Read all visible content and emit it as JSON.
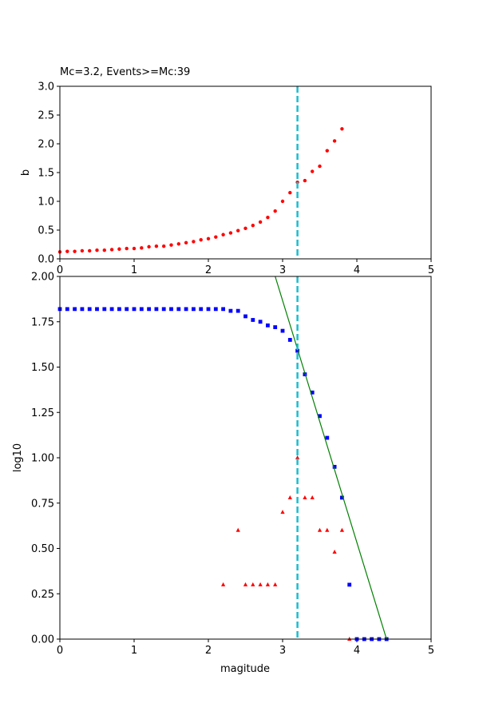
{
  "colors": {
    "b_points": "#ff0000",
    "cumulative": "#0000ff",
    "noncumulative": "#ff0000",
    "fit_line": "#008000",
    "mc_line": "#17becf"
  },
  "chart_data": [
    {
      "type": "scatter",
      "title": "Mc=3.2, Events>=Mc:39",
      "xlabel": "",
      "ylabel": "b",
      "xlim": [
        0,
        5
      ],
      "ylim": [
        0,
        3
      ],
      "xticks": [
        "0",
        "1",
        "2",
        "3",
        "4",
        "5"
      ],
      "yticks": [
        "0.0",
        "0.5",
        "1.0",
        "1.5",
        "2.0",
        "2.5",
        "3.0"
      ],
      "mc": 3.2,
      "series": [
        {
          "marker": "circle",
          "x": [
            0.0,
            0.1,
            0.2,
            0.3,
            0.4,
            0.5,
            0.6,
            0.7,
            0.8,
            0.9,
            1.0,
            1.1,
            1.2,
            1.3,
            1.4,
            1.5,
            1.6,
            1.7,
            1.8,
            1.9,
            2.0,
            2.1,
            2.2,
            2.3,
            2.4,
            2.5,
            2.6,
            2.7,
            2.8,
            2.9,
            3.0,
            3.1,
            3.2,
            3.3,
            3.4,
            3.5,
            3.6,
            3.7,
            3.8
          ],
          "values": [
            0.12,
            0.13,
            0.13,
            0.14,
            0.14,
            0.15,
            0.15,
            0.16,
            0.17,
            0.18,
            0.18,
            0.19,
            0.21,
            0.22,
            0.22,
            0.24,
            0.26,
            0.28,
            0.3,
            0.33,
            0.35,
            0.38,
            0.42,
            0.45,
            0.49,
            0.53,
            0.58,
            0.64,
            0.72,
            0.83,
            1.0,
            1.15,
            1.33,
            1.36,
            1.52,
            1.61,
            1.88,
            2.05,
            2.26
          ]
        }
      ]
    },
    {
      "type": "scatter",
      "title": "",
      "xlabel": "magitude",
      "ylabel": "log10",
      "xlim": [
        0,
        5
      ],
      "ylim": [
        0,
        2
      ],
      "xticks": [
        "0",
        "1",
        "2",
        "3",
        "4",
        "5"
      ],
      "yticks": [
        "0.00",
        "0.25",
        "0.50",
        "0.75",
        "1.00",
        "1.25",
        "1.50",
        "1.75",
        "2.00"
      ],
      "mc": 3.2,
      "series": [
        {
          "marker": "square",
          "x": [
            0.0,
            0.1,
            0.2,
            0.3,
            0.4,
            0.5,
            0.6,
            0.7,
            0.8,
            0.9,
            1.0,
            1.1,
            1.2,
            1.3,
            1.4,
            1.5,
            1.6,
            1.7,
            1.8,
            1.9,
            2.0,
            2.1,
            2.2,
            2.3,
            2.4,
            2.5,
            2.6,
            2.7,
            2.8,
            2.9,
            3.0,
            3.1,
            3.2,
            3.3,
            3.4,
            3.5,
            3.6,
            3.7,
            3.8,
            3.9,
            4.0,
            4.1,
            4.2,
            4.3,
            4.4
          ],
          "values": [
            1.82,
            1.82,
            1.82,
            1.82,
            1.82,
            1.82,
            1.82,
            1.82,
            1.82,
            1.82,
            1.82,
            1.82,
            1.82,
            1.82,
            1.82,
            1.82,
            1.82,
            1.82,
            1.82,
            1.82,
            1.82,
            1.82,
            1.82,
            1.81,
            1.81,
            1.78,
            1.76,
            1.75,
            1.73,
            1.72,
            1.7,
            1.65,
            1.59,
            1.46,
            1.36,
            1.23,
            1.11,
            0.95,
            0.78,
            0.3,
            0.0,
            0.0,
            0.0,
            0.0,
            0.0
          ]
        },
        {
          "marker": "triangle",
          "x": [
            2.2,
            2.4,
            2.5,
            2.6,
            2.7,
            2.8,
            2.9,
            3.0,
            3.1,
            3.2,
            3.3,
            3.4,
            3.5,
            3.6,
            3.7,
            3.8,
            3.9
          ],
          "values": [
            0.3,
            0.6,
            0.3,
            0.3,
            0.3,
            0.3,
            0.3,
            0.7,
            0.78,
            1.0,
            0.78,
            0.78,
            0.6,
            0.6,
            0.48,
            0.6,
            0.0
          ]
        },
        {
          "marker": "line",
          "x": [
            2.9,
            4.4
          ],
          "values": [
            2.0,
            0.0
          ]
        }
      ]
    }
  ]
}
